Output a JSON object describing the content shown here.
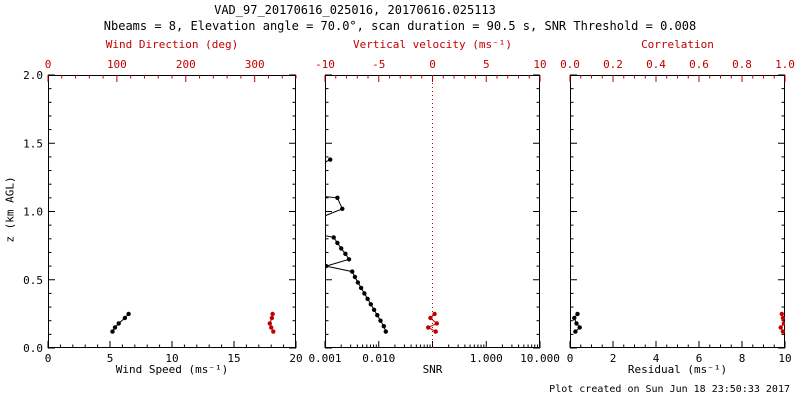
{
  "header": {
    "title": "VAD_97_20170616_025016, 20170616.025113",
    "subtitle": "Nbeams = 8, Elevation angle = 70.0°, scan duration = 90.5 s, SNR Threshold = 0.008"
  },
  "footer": {
    "created": "Plot created on Sun Jun 18 23:50:33 2017"
  },
  "colors": {
    "primary": "#000000",
    "secondary": "#c00000",
    "background": "#ffffff"
  },
  "chart_data": [
    {
      "type": "scatter",
      "y": {
        "label": "z (km AGL)",
        "lim": [
          0,
          2
        ],
        "minor": 0.1,
        "labeled": true,
        "ticks": [
          {
            "v": 0,
            "l": "0.0"
          },
          {
            "v": 0.5,
            "l": "0.5"
          },
          {
            "v": 1,
            "l": "1.0"
          },
          {
            "v": 1.5,
            "l": "1.5"
          },
          {
            "v": 2,
            "l": "2.0"
          }
        ]
      },
      "x1": {
        "label": "Wind Speed (ms⁻¹)",
        "lim": [
          0,
          20
        ],
        "minor": 1,
        "color": "#000000",
        "ticks": [
          {
            "v": 0,
            "l": "0"
          },
          {
            "v": 5,
            "l": "5"
          },
          {
            "v": 10,
            "l": "10"
          },
          {
            "v": 15,
            "l": "15"
          },
          {
            "v": 20,
            "l": "20"
          }
        ]
      },
      "x2": {
        "label": "Wind Direction (deg)",
        "lim": [
          0,
          360
        ],
        "minor": 20,
        "color": "#c00000",
        "ticks": [
          {
            "v": 0,
            "l": "0"
          },
          {
            "v": 100,
            "l": "100"
          },
          {
            "v": 200,
            "l": "200"
          },
          {
            "v": 300,
            "l": "300"
          }
        ]
      },
      "series": [
        {
          "name": "wind-speed",
          "axis": "x1",
          "color": "#000000",
          "points": [
            [
              5.2,
              0.12
            ],
            [
              5.4,
              0.15
            ],
            [
              5.7,
              0.18
            ],
            [
              6.2,
              0.22
            ],
            [
              6.5,
              0.25
            ]
          ]
        },
        {
          "name": "wind-direction",
          "axis": "x2",
          "color": "#c00000",
          "points": [
            [
              327,
              0.12
            ],
            [
              324,
              0.15
            ],
            [
              322,
              0.18
            ],
            [
              325,
              0.22
            ],
            [
              326,
              0.25
            ]
          ]
        }
      ]
    },
    {
      "type": "scatter",
      "y": {
        "label": "",
        "lim": [
          0,
          2
        ],
        "minor": 0.1,
        "labeled": false,
        "ticks": [
          {
            "v": 0,
            "l": ""
          },
          {
            "v": 0.5,
            "l": ""
          },
          {
            "v": 1,
            "l": ""
          },
          {
            "v": 1.5,
            "l": ""
          },
          {
            "v": 2,
            "l": ""
          }
        ]
      },
      "x1": {
        "label": "SNR",
        "lim": [
          0.001,
          10
        ],
        "log": true,
        "minor": "log",
        "color": "#000000",
        "ticks": [
          {
            "v": 0.001,
            "l": "0.001"
          },
          {
            "v": 0.01,
            "l": "0.010"
          },
          {
            "v": 0.1,
            "l": ""
          },
          {
            "v": 1,
            "l": "1.000"
          },
          {
            "v": 10,
            "l": "10.000"
          }
        ]
      },
      "x2": {
        "label": "Vertical velocity (ms⁻¹)",
        "lim": [
          -10,
          10
        ],
        "minor": 1,
        "color": "#c00000",
        "ticks": [
          {
            "v": -10,
            "l": "-10"
          },
          {
            "v": -5,
            "l": "-5"
          },
          {
            "v": 0,
            "l": "0"
          },
          {
            "v": 5,
            "l": "5"
          },
          {
            "v": 10,
            "l": "10"
          }
        ]
      },
      "vlines": [
        {
          "axis": "x2",
          "v": 0,
          "color": "#c00000",
          "dash": "1,3"
        }
      ],
      "series": [
        {
          "name": "snr",
          "axis": "x1",
          "color": "#000000",
          "points": [
            [
              0.00125,
              1.38
            ],
            [
              0.0005,
              1.3
            ],
            [
              0.0005,
              1.12
            ],
            [
              0.0017,
              1.1
            ],
            [
              0.0021,
              1.02
            ],
            [
              0.0005,
              0.92
            ],
            [
              0.0006,
              0.84
            ],
            [
              0.00145,
              0.81
            ],
            [
              0.0017,
              0.77
            ],
            [
              0.002,
              0.73
            ],
            [
              0.0024,
              0.69
            ],
            [
              0.0028,
              0.65
            ],
            [
              0.00105,
              0.6
            ],
            [
              0.0032,
              0.56
            ],
            [
              0.0036,
              0.52
            ],
            [
              0.0041,
              0.48
            ],
            [
              0.0047,
              0.44
            ],
            [
              0.0054,
              0.4
            ],
            [
              0.0062,
              0.36
            ],
            [
              0.0071,
              0.32
            ],
            [
              0.0082,
              0.28
            ],
            [
              0.0094,
              0.24
            ],
            [
              0.0108,
              0.2
            ],
            [
              0.0124,
              0.16
            ],
            [
              0.0135,
              0.12
            ]
          ]
        },
        {
          "name": "vertical-velocity",
          "axis": "x2",
          "color": "#c00000",
          "points": [
            [
              0.3,
              0.12
            ],
            [
              -0.4,
              0.15
            ],
            [
              0.4,
              0.18
            ],
            [
              -0.2,
              0.22
            ],
            [
              0.2,
              0.25
            ]
          ]
        }
      ]
    },
    {
      "type": "scatter",
      "y": {
        "label": "",
        "lim": [
          0,
          2
        ],
        "minor": 0.1,
        "labeled": false,
        "ticks": [
          {
            "v": 0,
            "l": ""
          },
          {
            "v": 0.5,
            "l": ""
          },
          {
            "v": 1,
            "l": ""
          },
          {
            "v": 1.5,
            "l": ""
          },
          {
            "v": 2,
            "l": ""
          }
        ]
      },
      "x1": {
        "label": "Residual (ms⁻¹)",
        "lim": [
          0,
          10
        ],
        "minor": 0.5,
        "color": "#000000",
        "ticks": [
          {
            "v": 0,
            "l": "0"
          },
          {
            "v": 2,
            "l": "2"
          },
          {
            "v": 4,
            "l": "4"
          },
          {
            "v": 6,
            "l": "6"
          },
          {
            "v": 8,
            "l": "8"
          },
          {
            "v": 10,
            "l": "10"
          }
        ]
      },
      "x2": {
        "label": "Correlation",
        "lim": [
          0,
          1
        ],
        "minor": 0.05,
        "color": "#c00000",
        "ticks": [
          {
            "v": 0,
            "l": "0.0"
          },
          {
            "v": 0.2,
            "l": "0.2"
          },
          {
            "v": 0.4,
            "l": "0.4"
          },
          {
            "v": 0.6,
            "l": "0.6"
          },
          {
            "v": 0.8,
            "l": "0.8"
          },
          {
            "v": 1,
            "l": "1.0"
          }
        ]
      },
      "series": [
        {
          "name": "residual",
          "axis": "x1",
          "color": "#000000",
          "points": [
            [
              0.25,
              0.12
            ],
            [
              0.45,
              0.15
            ],
            [
              0.3,
              0.18
            ],
            [
              0.2,
              0.22
            ],
            [
              0.35,
              0.25
            ]
          ]
        },
        {
          "name": "correlation",
          "axis": "x2",
          "color": "#c00000",
          "points": [
            [
              0.99,
              0.12
            ],
            [
              0.98,
              0.15
            ],
            [
              0.995,
              0.18
            ],
            [
              0.99,
              0.22
            ],
            [
              0.985,
              0.25
            ]
          ]
        }
      ]
    }
  ]
}
